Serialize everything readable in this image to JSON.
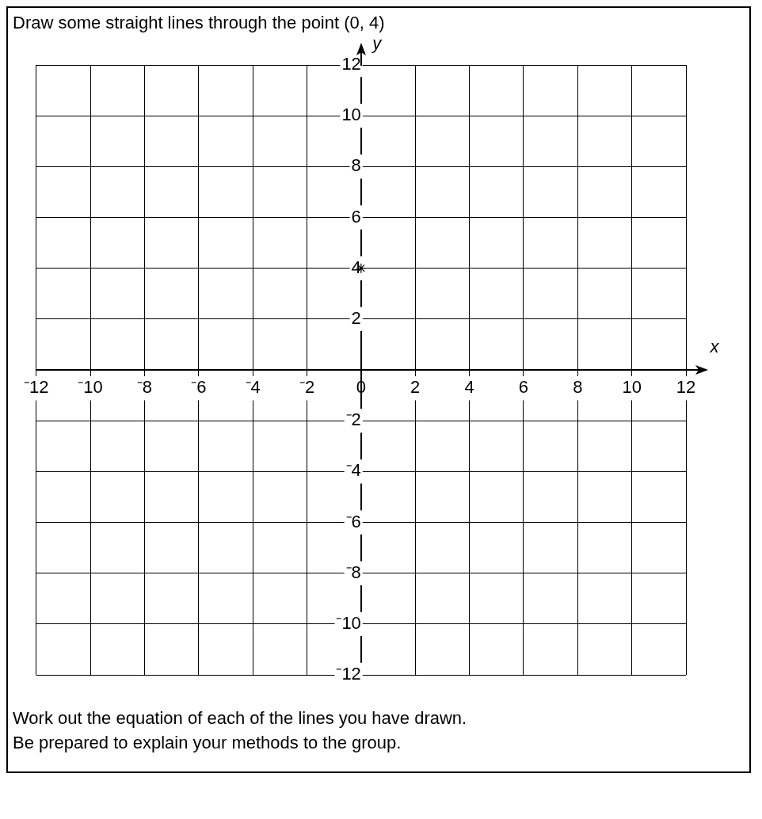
{
  "chart_data": {
    "type": "scatter",
    "title": "Draw some straight lines through the point (0, 4)",
    "xlabel": "x",
    "ylabel": "y",
    "x": [
      0
    ],
    "values": [
      4
    ],
    "color": "#000000",
    "marker": "cross",
    "grid": true,
    "xlim": [
      -12,
      12
    ],
    "ylim": [
      -12,
      12
    ],
    "xticks": [
      {
        "value": -12,
        "label": "⁻12"
      },
      {
        "value": -10,
        "label": "⁻10"
      },
      {
        "value": -8,
        "label": "⁻8"
      },
      {
        "value": -6,
        "label": "⁻6"
      },
      {
        "value": -4,
        "label": "⁻4"
      },
      {
        "value": -2,
        "label": "⁻2"
      },
      0,
      2,
      4,
      6,
      8,
      10,
      12
    ],
    "yticks": [
      {
        "value": -12,
        "label": "⁻12"
      },
      {
        "value": -10,
        "label": "⁻10"
      },
      {
        "value": -8,
        "label": "⁻8"
      },
      {
        "value": -6,
        "label": "⁻6"
      },
      {
        "value": -4,
        "label": "⁻4"
      },
      {
        "value": -2,
        "label": "⁻2"
      },
      {
        "value": 0,
        "label": null
      },
      2,
      4,
      6,
      8,
      10,
      12
    ],
    "annotations": [
      "Work out the equation of each of the lines you have drawn.",
      "Be prepared to explain your methods to the group."
    ]
  }
}
